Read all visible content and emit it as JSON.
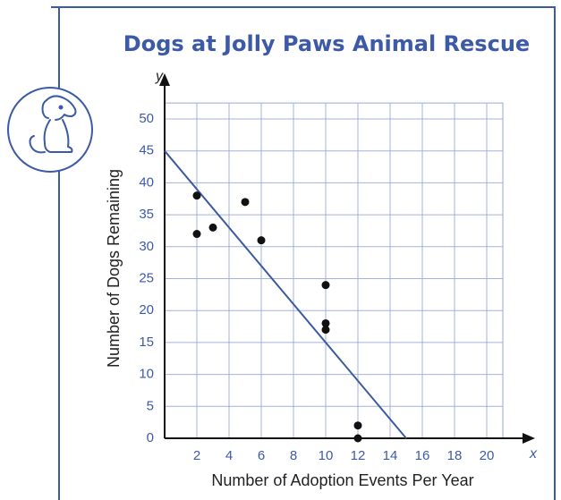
{
  "chart_data": {
    "type": "scatter",
    "title": "Dogs at Jolly Paws Animal Rescue",
    "xlabel": "Number of Adoption Events Per Year",
    "ylabel": "Number of Dogs Remaining",
    "x_axis_letter": "x",
    "y_axis_letter": "y",
    "x": [
      2,
      2,
      3,
      5,
      6,
      10,
      10,
      10,
      12,
      12
    ],
    "values": [
      38,
      32,
      33,
      37,
      31,
      24,
      18,
      17,
      2,
      0
    ],
    "color": "#111111",
    "trend_line": {
      "x": [
        0,
        15
      ],
      "y": [
        45,
        0
      ],
      "color": "#3b5aa0"
    },
    "xlim": [
      0,
      21
    ],
    "ylim": [
      0,
      52.5
    ],
    "xticks": [
      2,
      4,
      6,
      8,
      10,
      12,
      14,
      16,
      18,
      20
    ],
    "yticks": [
      0,
      5,
      10,
      15,
      20,
      25,
      30,
      35,
      40,
      45,
      50
    ],
    "grid": true
  }
}
